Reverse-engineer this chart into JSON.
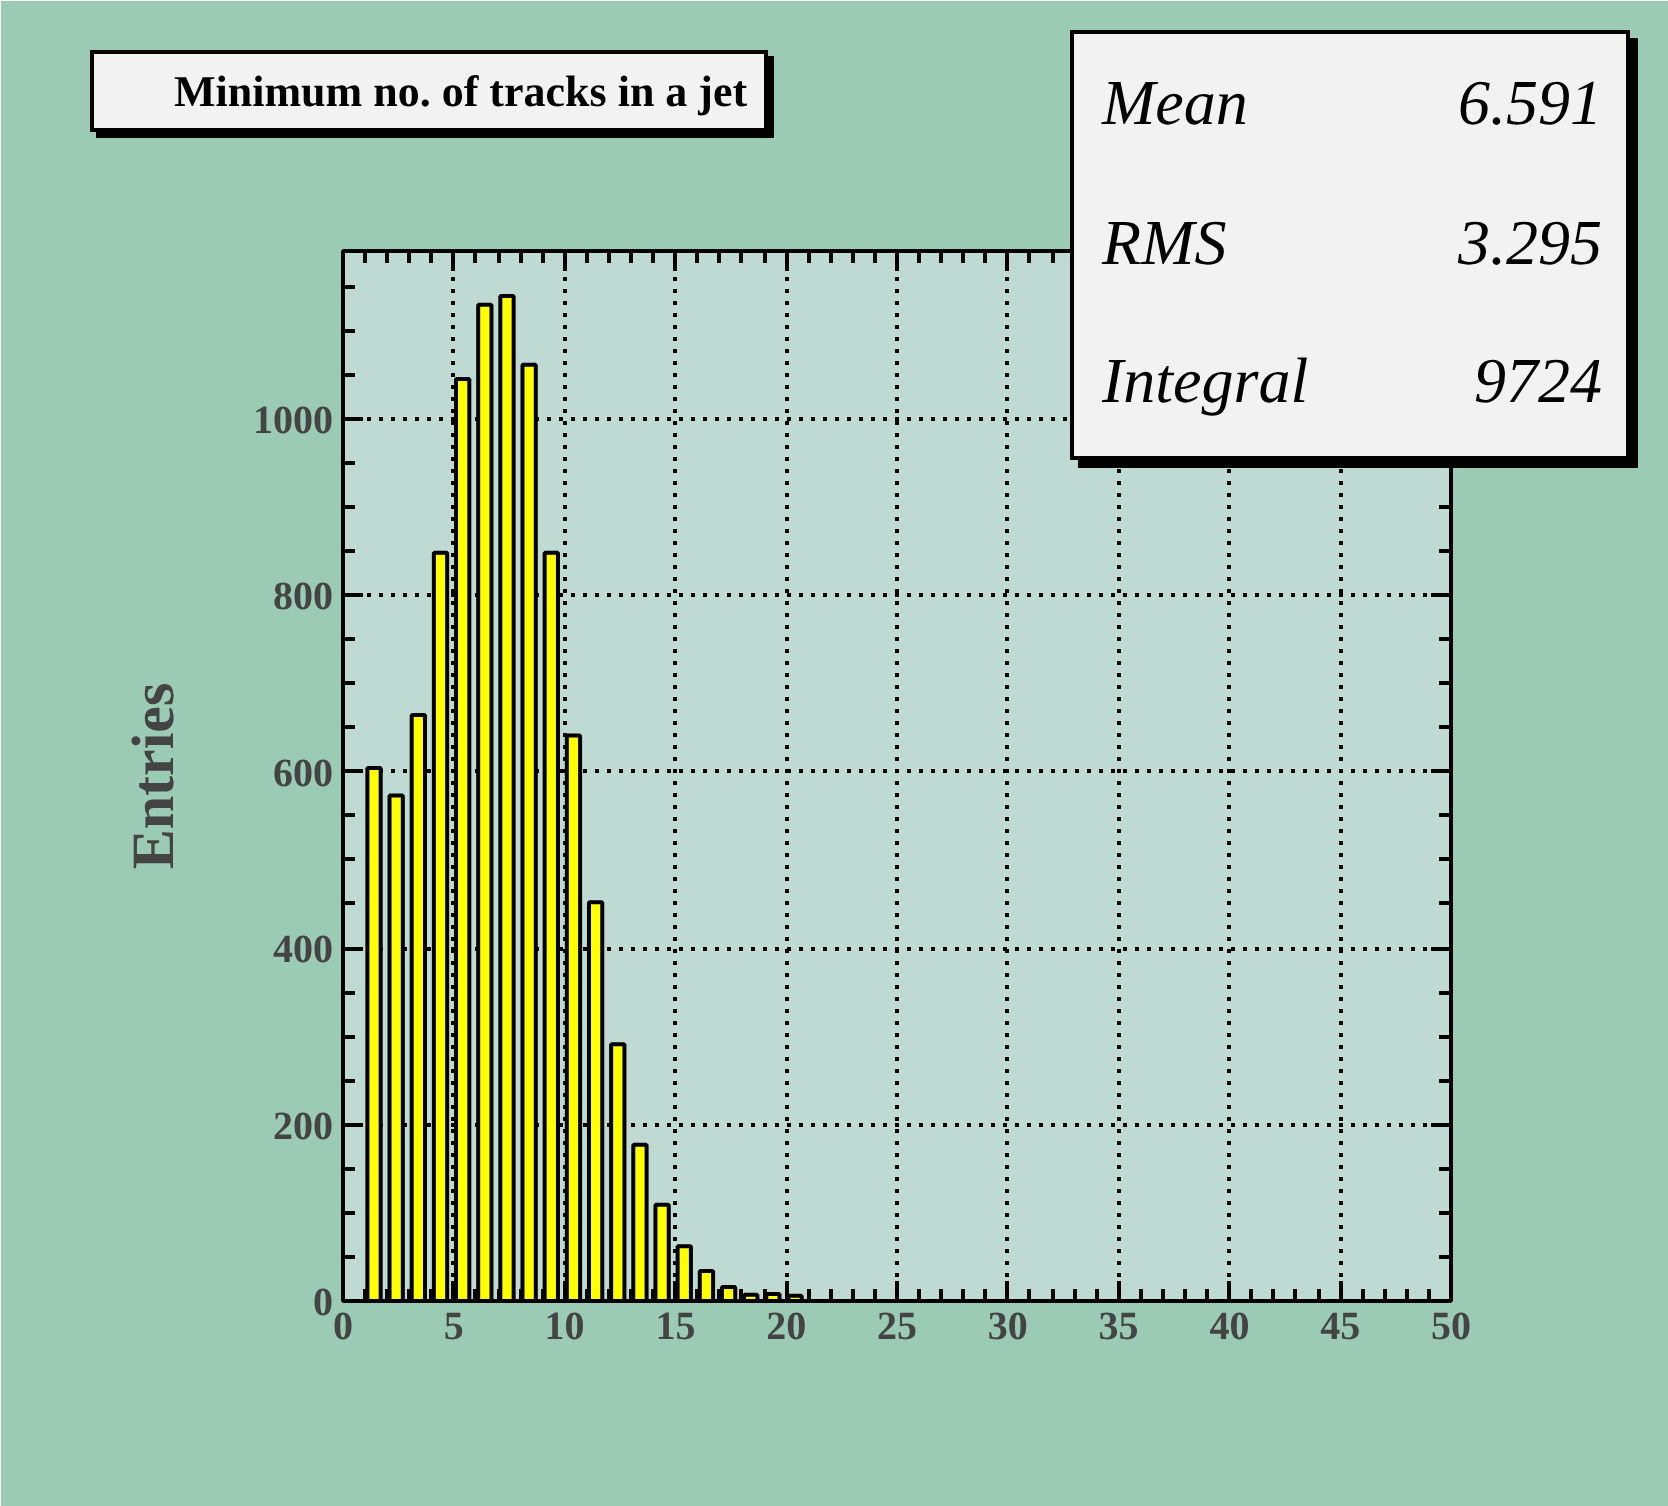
{
  "chart_data": {
    "type": "histogram",
    "title": "Minimum no. of tracks in a jet",
    "ylabel": "Entries",
    "annotations": [
      "Mean 6.591",
      "RMS 3.295",
      "Integral 9724"
    ],
    "bins": [
      1,
      2,
      3,
      4,
      5,
      6,
      7,
      8,
      9,
      10,
      11,
      12,
      13,
      14,
      15,
      16,
      17,
      18,
      19,
      20,
      21,
      22,
      23,
      24,
      25
    ],
    "values": [
      604,
      573,
      664,
      848,
      1045,
      1129,
      1139,
      1061,
      848,
      641,
      452,
      291,
      177,
      109,
      62,
      34,
      16,
      7,
      8,
      6,
      null,
      null,
      null,
      null
    ],
    "color": "#ffff00",
    "xlim": [
      0,
      50
    ],
    "xticks": [
      0,
      5,
      10,
      15,
      20,
      25,
      30,
      35,
      40,
      45,
      50
    ],
    "ylim": [
      0,
      1190
    ],
    "yticks": [
      0,
      200,
      400,
      600,
      800,
      1000
    ],
    "grid": true
  }
}
